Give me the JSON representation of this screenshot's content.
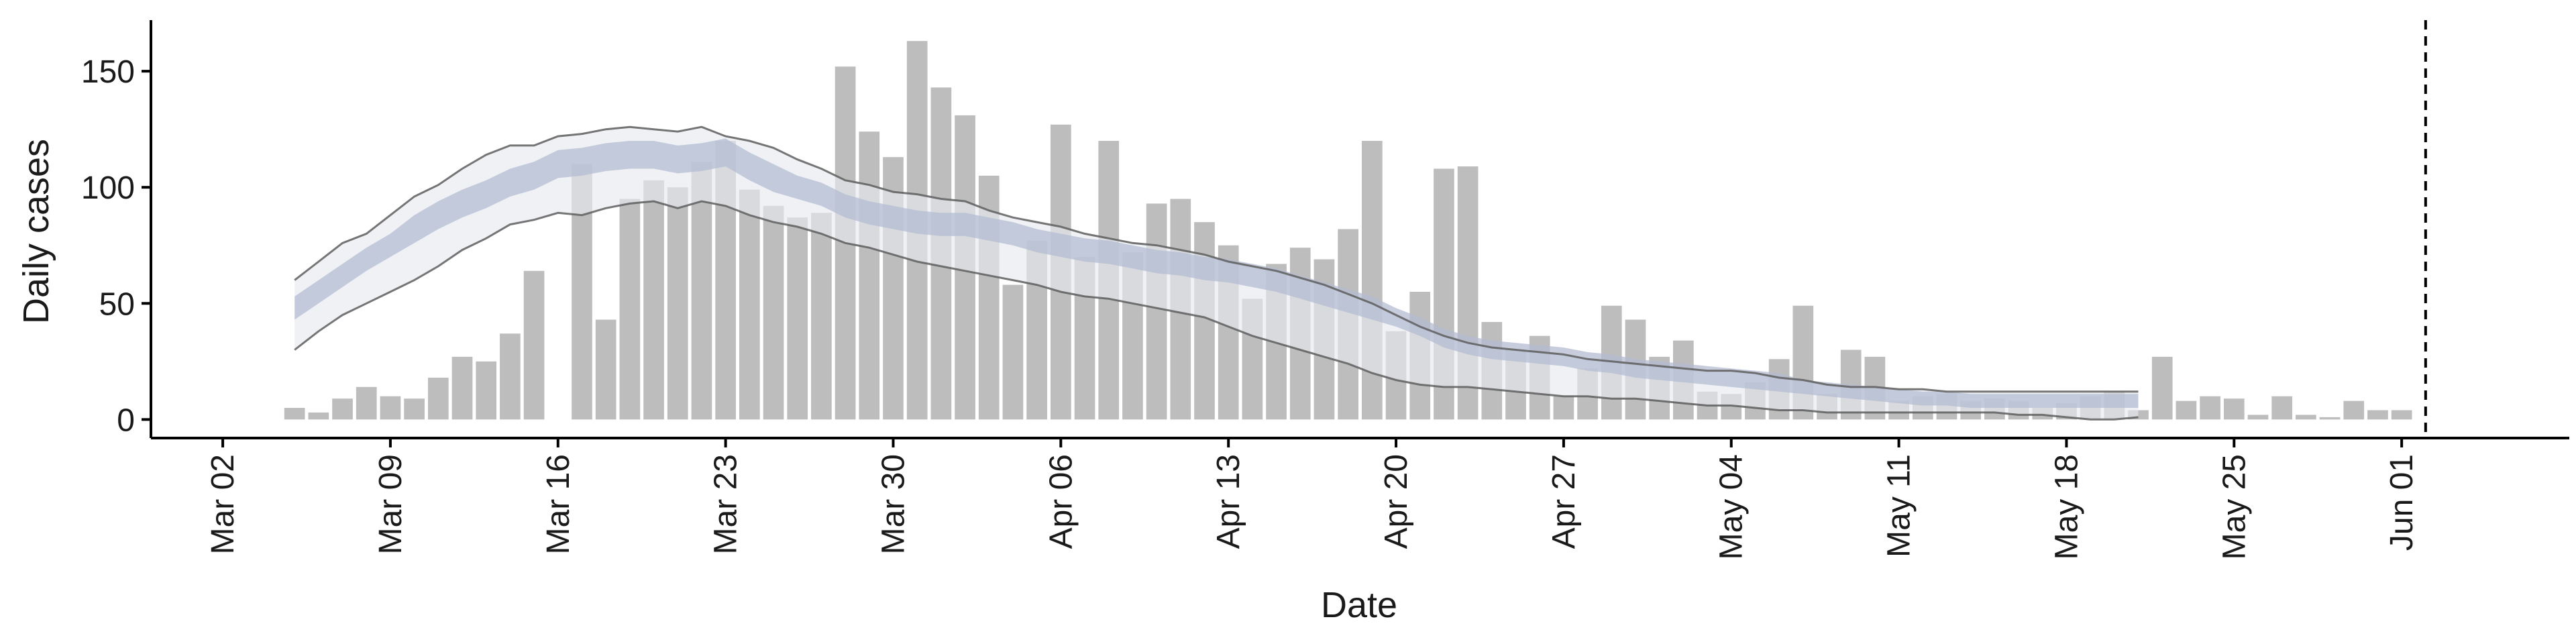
{
  "chart_data": {
    "type": "bar",
    "xlabel": "Date",
    "ylabel": "Daily cases",
    "ylim": [
      -8,
      172
    ],
    "xlim": [
      "2020-02-28",
      "2020-06-08"
    ],
    "yticks": [
      0,
      50,
      100,
      150
    ],
    "xticks": [
      {
        "date": "2020-03-02",
        "label": "Mar 02"
      },
      {
        "date": "2020-03-09",
        "label": "Mar 09"
      },
      {
        "date": "2020-03-16",
        "label": "Mar 16"
      },
      {
        "date": "2020-03-23",
        "label": "Mar 23"
      },
      {
        "date": "2020-03-30",
        "label": "Mar 30"
      },
      {
        "date": "2020-04-06",
        "label": "Apr 06"
      },
      {
        "date": "2020-04-13",
        "label": "Apr 13"
      },
      {
        "date": "2020-04-20",
        "label": "Apr 20"
      },
      {
        "date": "2020-04-27",
        "label": "Apr 27"
      },
      {
        "date": "2020-05-04",
        "label": "May 04"
      },
      {
        "date": "2020-05-11",
        "label": "May 11"
      },
      {
        "date": "2020-05-18",
        "label": "May 18"
      },
      {
        "date": "2020-05-25",
        "label": "May 25"
      },
      {
        "date": "2020-06-01",
        "label": "Jun 01"
      }
    ],
    "bars": {
      "start_date": "2020-03-05",
      "values": [
        5,
        3,
        9,
        14,
        10,
        9,
        18,
        27,
        25,
        37,
        64,
        0,
        110,
        43,
        95,
        103,
        100,
        111,
        120,
        99,
        92,
        87,
        89,
        152,
        124,
        113,
        163,
        143,
        131,
        105,
        58,
        77,
        127,
        70,
        120,
        72,
        93,
        95,
        85,
        75,
        52,
        67,
        74,
        69,
        82,
        120,
        38,
        55,
        108,
        109,
        42,
        30,
        36,
        10,
        22,
        49,
        43,
        27,
        34,
        12,
        11,
        16,
        26,
        49,
        11,
        30,
        27,
        8,
        10,
        11,
        8,
        9,
        8,
        5,
        7,
        10,
        12,
        4,
        27,
        8,
        10,
        9,
        2,
        10,
        2,
        1,
        8,
        4,
        4
      ]
    },
    "model_band": {
      "start_date": "2020-03-05",
      "mean": [
        48,
        55,
        62,
        69,
        75,
        82,
        88,
        93,
        97,
        102,
        105,
        110,
        111,
        113,
        114,
        114,
        112,
        113,
        115,
        109,
        104,
        100,
        97,
        92,
        89,
        87,
        85,
        84,
        84,
        82,
        80,
        77,
        75,
        73,
        72,
        70,
        68,
        67,
        65,
        64,
        62,
        60,
        57,
        54,
        51,
        48,
        44,
        40,
        35,
        32,
        30,
        29,
        28,
        27,
        25,
        24,
        22,
        21,
        20,
        19,
        18,
        17,
        16,
        14,
        13,
        12,
        11,
        10,
        9,
        9,
        8,
        8,
        8,
        8,
        8,
        8,
        8,
        8
      ],
      "inner_half_width": [
        5,
        5,
        5,
        5,
        5,
        6,
        6,
        6,
        6,
        6,
        6,
        6,
        6,
        6,
        6,
        6,
        6,
        6,
        6,
        6,
        6,
        5,
        5,
        5,
        5,
        5,
        5,
        5,
        5,
        5,
        5,
        5,
        5,
        5,
        5,
        5,
        5,
        5,
        5,
        5,
        5,
        5,
        5,
        5,
        5,
        5,
        4,
        4,
        4,
        4,
        4,
        4,
        4,
        4,
        4,
        4,
        4,
        4,
        4,
        4,
        4,
        4,
        4,
        3,
        3,
        3,
        3,
        3,
        3,
        3,
        3,
        3,
        3,
        3,
        3,
        3,
        3,
        3
      ],
      "upper": [
        60,
        68,
        76,
        80,
        88,
        96,
        101,
        108,
        114,
        118,
        118,
        122,
        123,
        125,
        126,
        125,
        124,
        126,
        122,
        120,
        117,
        112,
        108,
        103,
        101,
        98,
        97,
        95,
        94,
        90,
        87,
        85,
        83,
        80,
        78,
        76,
        75,
        73,
        71,
        68,
        66,
        64,
        61,
        58,
        54,
        50,
        45,
        40,
        36,
        33,
        31,
        30,
        29,
        28,
        26,
        25,
        24,
        23,
        22,
        21,
        21,
        20,
        18,
        17,
        15,
        14,
        14,
        13,
        13,
        12,
        12,
        12,
        12,
        12,
        12,
        12,
        12,
        12
      ],
      "lower": [
        30,
        38,
        45,
        50,
        55,
        60,
        66,
        73,
        78,
        84,
        86,
        89,
        88,
        91,
        93,
        94,
        91,
        94,
        92,
        88,
        85,
        83,
        80,
        76,
        74,
        71,
        68,
        66,
        64,
        62,
        60,
        58,
        55,
        53,
        52,
        50,
        48,
        46,
        44,
        40,
        36,
        33,
        30,
        27,
        24,
        20,
        17,
        15,
        14,
        14,
        13,
        12,
        11,
        10,
        10,
        9,
        9,
        8,
        7,
        6,
        6,
        5,
        4,
        4,
        3,
        3,
        3,
        3,
        3,
        3,
        3,
        3,
        2,
        2,
        1,
        0,
        0,
        1
      ]
    },
    "forecast_line_date": "2020-06-02",
    "colors": {
      "bars": "#bdbdbd",
      "band_outer": "#e7e9f0",
      "band_inner": "#b4bcd2",
      "band_lines": "#5e5e5e",
      "axis": "#000000"
    }
  }
}
